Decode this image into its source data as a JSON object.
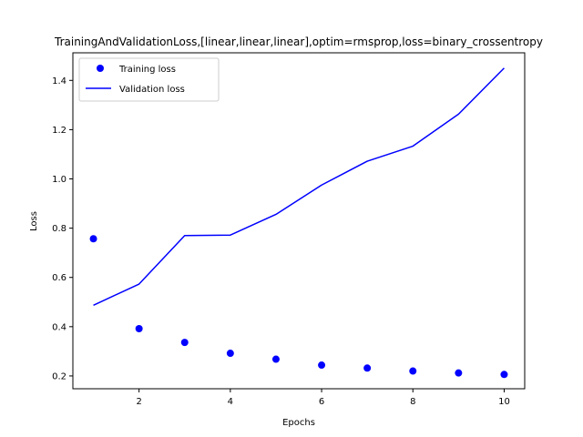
{
  "chart_data": {
    "type": "line",
    "title": "TrainingAndValidationLoss,[linear,linear,linear],optim=rmsprop,loss=binary_crossentropy",
    "xlabel": "Epochs",
    "ylabel": "Loss",
    "xlim": [
      0.55,
      10.45
    ],
    "ylim": [
      0.148,
      1.512
    ],
    "xticks": [
      2,
      4,
      6,
      8,
      10
    ],
    "yticks": [
      0.2,
      0.4,
      0.6,
      0.8,
      1.0,
      1.2,
      1.4
    ],
    "grid": false,
    "legend_position": "upper left",
    "x": [
      1,
      2,
      3,
      4,
      5,
      6,
      7,
      8,
      9,
      10
    ],
    "series": [
      {
        "name": "Training loss",
        "style": "points",
        "color": "#0000ff",
        "values": [
          0.757,
          0.392,
          0.336,
          0.292,
          0.268,
          0.244,
          0.232,
          0.22,
          0.212,
          0.206
        ]
      },
      {
        "name": "Validation loss",
        "style": "line",
        "color": "#0000ff",
        "values": [
          0.487,
          0.573,
          0.77,
          0.772,
          0.856,
          0.975,
          1.072,
          1.133,
          1.263,
          1.45
        ]
      }
    ]
  }
}
